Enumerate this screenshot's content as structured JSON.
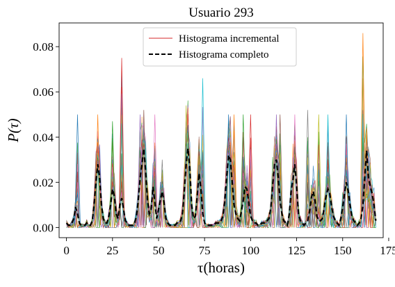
{
  "chart_data": {
    "type": "line",
    "title": "Usuario 293",
    "xlabel": "τ(horas)",
    "ylabel": "P(τ)",
    "xlim": [
      -4,
      172
    ],
    "ylim": [
      -0.0045,
      0.0905
    ],
    "xticks": [
      0,
      25,
      50,
      75,
      100,
      125,
      150,
      175
    ],
    "yticks": [
      0.0,
      0.02,
      0.04,
      0.06,
      0.08
    ],
    "xtick_labels": [
      "0",
      "25",
      "50",
      "75",
      "100",
      "125",
      "150",
      "175"
    ],
    "ytick_labels": [
      "0.00",
      "0.02",
      "0.04",
      "0.06",
      "0.08"
    ],
    "legend": {
      "placement": "top-center",
      "entries": [
        "Histograma incremental",
        "Histograma completo"
      ]
    },
    "series": [
      {
        "name": "Histograma completo",
        "style": "dashed",
        "color": "#000000",
        "x": [
          0,
          1,
          2,
          3,
          4,
          5,
          6,
          7,
          8,
          9,
          10,
          11,
          12,
          13,
          14,
          15,
          16,
          17,
          18,
          19,
          20,
          21,
          22,
          23,
          24,
          25,
          26,
          27,
          28,
          29,
          30,
          31,
          32,
          33,
          34,
          35,
          36,
          37,
          38,
          39,
          40,
          41,
          42,
          43,
          44,
          45,
          46,
          47,
          48,
          49,
          50,
          51,
          52,
          53,
          54,
          55,
          56,
          57,
          58,
          59,
          60,
          61,
          62,
          63,
          64,
          65,
          66,
          67,
          68,
          69,
          70,
          71,
          72,
          73,
          74,
          75,
          76,
          77,
          78,
          79,
          80,
          81,
          82,
          83,
          84,
          85,
          86,
          87,
          88,
          89,
          90,
          91,
          92,
          93,
          94,
          95,
          96,
          97,
          98,
          99,
          100,
          101,
          102,
          103,
          104,
          105,
          106,
          107,
          108,
          109,
          110,
          111,
          112,
          113,
          114,
          115,
          116,
          117,
          118,
          119,
          120,
          121,
          122,
          123,
          124,
          125,
          126,
          127,
          128,
          129,
          130,
          131,
          132,
          133,
          134,
          135,
          136,
          137,
          138,
          139,
          140,
          141,
          142,
          143,
          144,
          145,
          146,
          147,
          148,
          149,
          150,
          151,
          152,
          153,
          154,
          155,
          156,
          157,
          158,
          159,
          160,
          161,
          162,
          163,
          164,
          165,
          166,
          167,
          168
        ],
        "y": [
          0.002,
          0.001,
          0.001,
          0.002,
          0.004,
          0.009,
          0.006,
          0.002,
          0.001,
          0.001,
          0.001,
          0.002,
          0.001,
          0.001,
          0.003,
          0.01,
          0.02,
          0.028,
          0.022,
          0.01,
          0.004,
          0.002,
          0.002,
          0.005,
          0.01,
          0.017,
          0.014,
          0.006,
          0.004,
          0.01,
          0.013,
          0.008,
          0.003,
          0.002,
          0.001,
          0.001,
          0.001,
          0.002,
          0.005,
          0.012,
          0.022,
          0.028,
          0.035,
          0.025,
          0.012,
          0.006,
          0.008,
          0.018,
          0.011,
          0.004,
          0.008,
          0.012,
          0.016,
          0.011,
          0.004,
          0.002,
          0.001,
          0.001,
          0.001,
          0.001,
          0.002,
          0.002,
          0.003,
          0.006,
          0.016,
          0.028,
          0.035,
          0.026,
          0.01,
          0.004,
          0.005,
          0.014,
          0.024,
          0.017,
          0.006,
          0.002,
          0.001,
          0.001,
          0.001,
          0.001,
          0.001,
          0.002,
          0.002,
          0.002,
          0.003,
          0.005,
          0.012,
          0.022,
          0.032,
          0.03,
          0.02,
          0.01,
          0.006,
          0.004,
          0.003,
          0.007,
          0.012,
          0.018,
          0.017,
          0.011,
          0.005,
          0.003,
          0.002,
          0.002,
          0.001,
          0.001,
          0.002,
          0.002,
          0.002,
          0.003,
          0.004,
          0.009,
          0.019,
          0.028,
          0.03,
          0.022,
          0.012,
          0.006,
          0.003,
          0.002,
          0.001,
          0.006,
          0.016,
          0.021,
          0.028,
          0.018,
          0.006,
          0.003,
          0.002,
          0.001,
          0.002,
          0.003,
          0.007,
          0.013,
          0.016,
          0.012,
          0.005,
          0.003,
          0.003,
          0.004,
          0.009,
          0.014,
          0.017,
          0.015,
          0.009,
          0.005,
          0.003,
          0.002,
          0.001,
          0.004,
          0.009,
          0.015,
          0.02,
          0.016,
          0.01,
          0.005,
          0.003,
          0.002,
          0.001,
          0.002,
          0.004,
          0.01,
          0.022,
          0.034,
          0.022,
          0.018,
          0.015,
          0.01,
          0.003
        ]
      },
      {
        "name": "Histograma incremental",
        "style": "solid",
        "color": "#d62728"
      }
    ],
    "incremental_series_colors": [
      "#1f77b4",
      "#ff7f0e",
      "#2ca02c",
      "#d62728",
      "#9467bd",
      "#8c564b",
      "#e377c2",
      "#7f7f7f",
      "#bcbd22",
      "#17becf"
    ],
    "incremental_peak_envelope": [
      {
        "x": 6,
        "y": 0.05
      },
      {
        "x": 17,
        "y": 0.05
      },
      {
        "x": 25,
        "y": 0.047
      },
      {
        "x": 30,
        "y": 0.075
      },
      {
        "x": 40,
        "y": 0.05
      },
      {
        "x": 42,
        "y": 0.052
      },
      {
        "x": 48,
        "y": 0.05
      },
      {
        "x": 52,
        "y": 0.03
      },
      {
        "x": 65,
        "y": 0.054
      },
      {
        "x": 74,
        "y": 0.066
      },
      {
        "x": 88,
        "y": 0.05
      },
      {
        "x": 91,
        "y": 0.05
      },
      {
        "x": 96,
        "y": 0.05
      },
      {
        "x": 100,
        "y": 0.05
      },
      {
        "x": 114,
        "y": 0.05
      },
      {
        "x": 116,
        "y": 0.05
      },
      {
        "x": 124,
        "y": 0.05
      },
      {
        "x": 131,
        "y": 0.052
      },
      {
        "x": 137,
        "y": 0.05
      },
      {
        "x": 142,
        "y": 0.05
      },
      {
        "x": 152,
        "y": 0.05
      },
      {
        "x": 161,
        "y": 0.086
      }
    ]
  }
}
